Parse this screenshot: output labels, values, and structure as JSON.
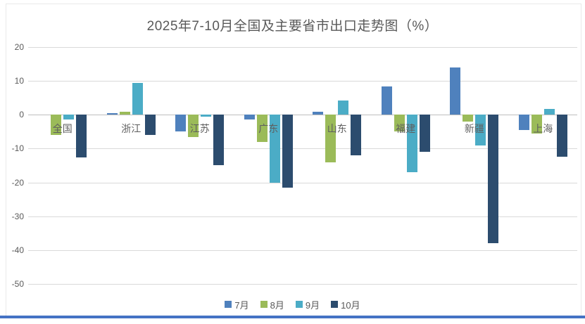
{
  "title": "2025年7-10月全国及主要省市出口走势图（%）",
  "colors": {
    "jul": "#4f81bd",
    "aug": "#9bbb59",
    "sep": "#4bacc6",
    "oct": "#2c4c6e",
    "gridline": "#d9d9d9",
    "zero_line": "#bfbfbf",
    "text": "#595959",
    "bottom_line": "#4472c4"
  },
  "chart_data": {
    "type": "bar",
    "title": "2025年7-10月全国及主要省市出口走势图（%）",
    "xlabel": "",
    "ylabel": "",
    "categories": [
      "全国",
      "浙江",
      "江苏",
      "广东",
      "山东",
      "福建",
      "新疆",
      "上海"
    ],
    "series": [
      {
        "name": "7月",
        "color": "#4f81bd",
        "values": [
          0,
          0.5,
          -5,
          -1.5,
          1,
          8.3,
          14,
          -4.5
        ]
      },
      {
        "name": "8月",
        "color": "#9bbb59",
        "values": [
          -6,
          0.8,
          -6.5,
          -8,
          -14,
          -5,
          -2,
          -5.5
        ]
      },
      {
        "name": "9月",
        "color": "#4bacc6",
        "values": [
          -1.4,
          9.5,
          -0.5,
          -20,
          4.2,
          -17,
          -9,
          1.7
        ]
      },
      {
        "name": "10月",
        "color": "#2c4c6e",
        "values": [
          -12.7,
          -6,
          -15,
          -21.5,
          -12,
          -11,
          -38,
          -12.5
        ]
      }
    ],
    "ylim": [
      -50,
      20
    ],
    "yticks": [
      20,
      10,
      0,
      -10,
      -20,
      -30,
      -40,
      -50
    ],
    "grid": true,
    "legend_position": "bottom"
  }
}
